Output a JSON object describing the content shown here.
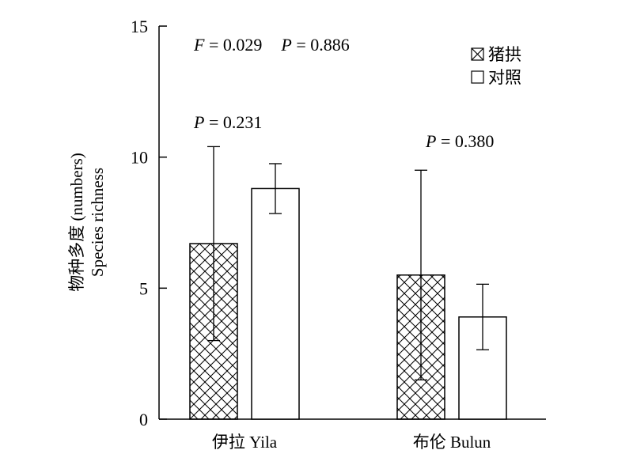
{
  "chart_data": {
    "type": "bar",
    "categories": [
      "伊拉 Yila",
      "布伦 Bulun"
    ],
    "series": [
      {
        "name": "猪拱",
        "values": [
          6.7,
          5.5
        ],
        "errors": [
          3.7,
          4.0
        ],
        "pattern": "crosshatch"
      },
      {
        "name": "对照",
        "values": [
          8.8,
          3.9
        ],
        "errors": [
          0.95,
          1.25
        ],
        "pattern": "none"
      }
    ],
    "ylabel_cn": "物种多度 (numbers)",
    "ylabel_en": "Species richness",
    "ylim": [
      0,
      15
    ],
    "yticks": [
      0,
      5,
      10,
      15
    ],
    "grid": false,
    "legend_position": "top-right",
    "annotations": {
      "overall": {
        "f_label": "F",
        "f_value": " = 0.029",
        "p_label": "P",
        "p_value": " = 0.886"
      },
      "per_category": [
        {
          "p_label": "P",
          "p_value": " = 0.231"
        },
        {
          "p_label": "P",
          "p_value": " = 0.380"
        }
      ]
    }
  }
}
